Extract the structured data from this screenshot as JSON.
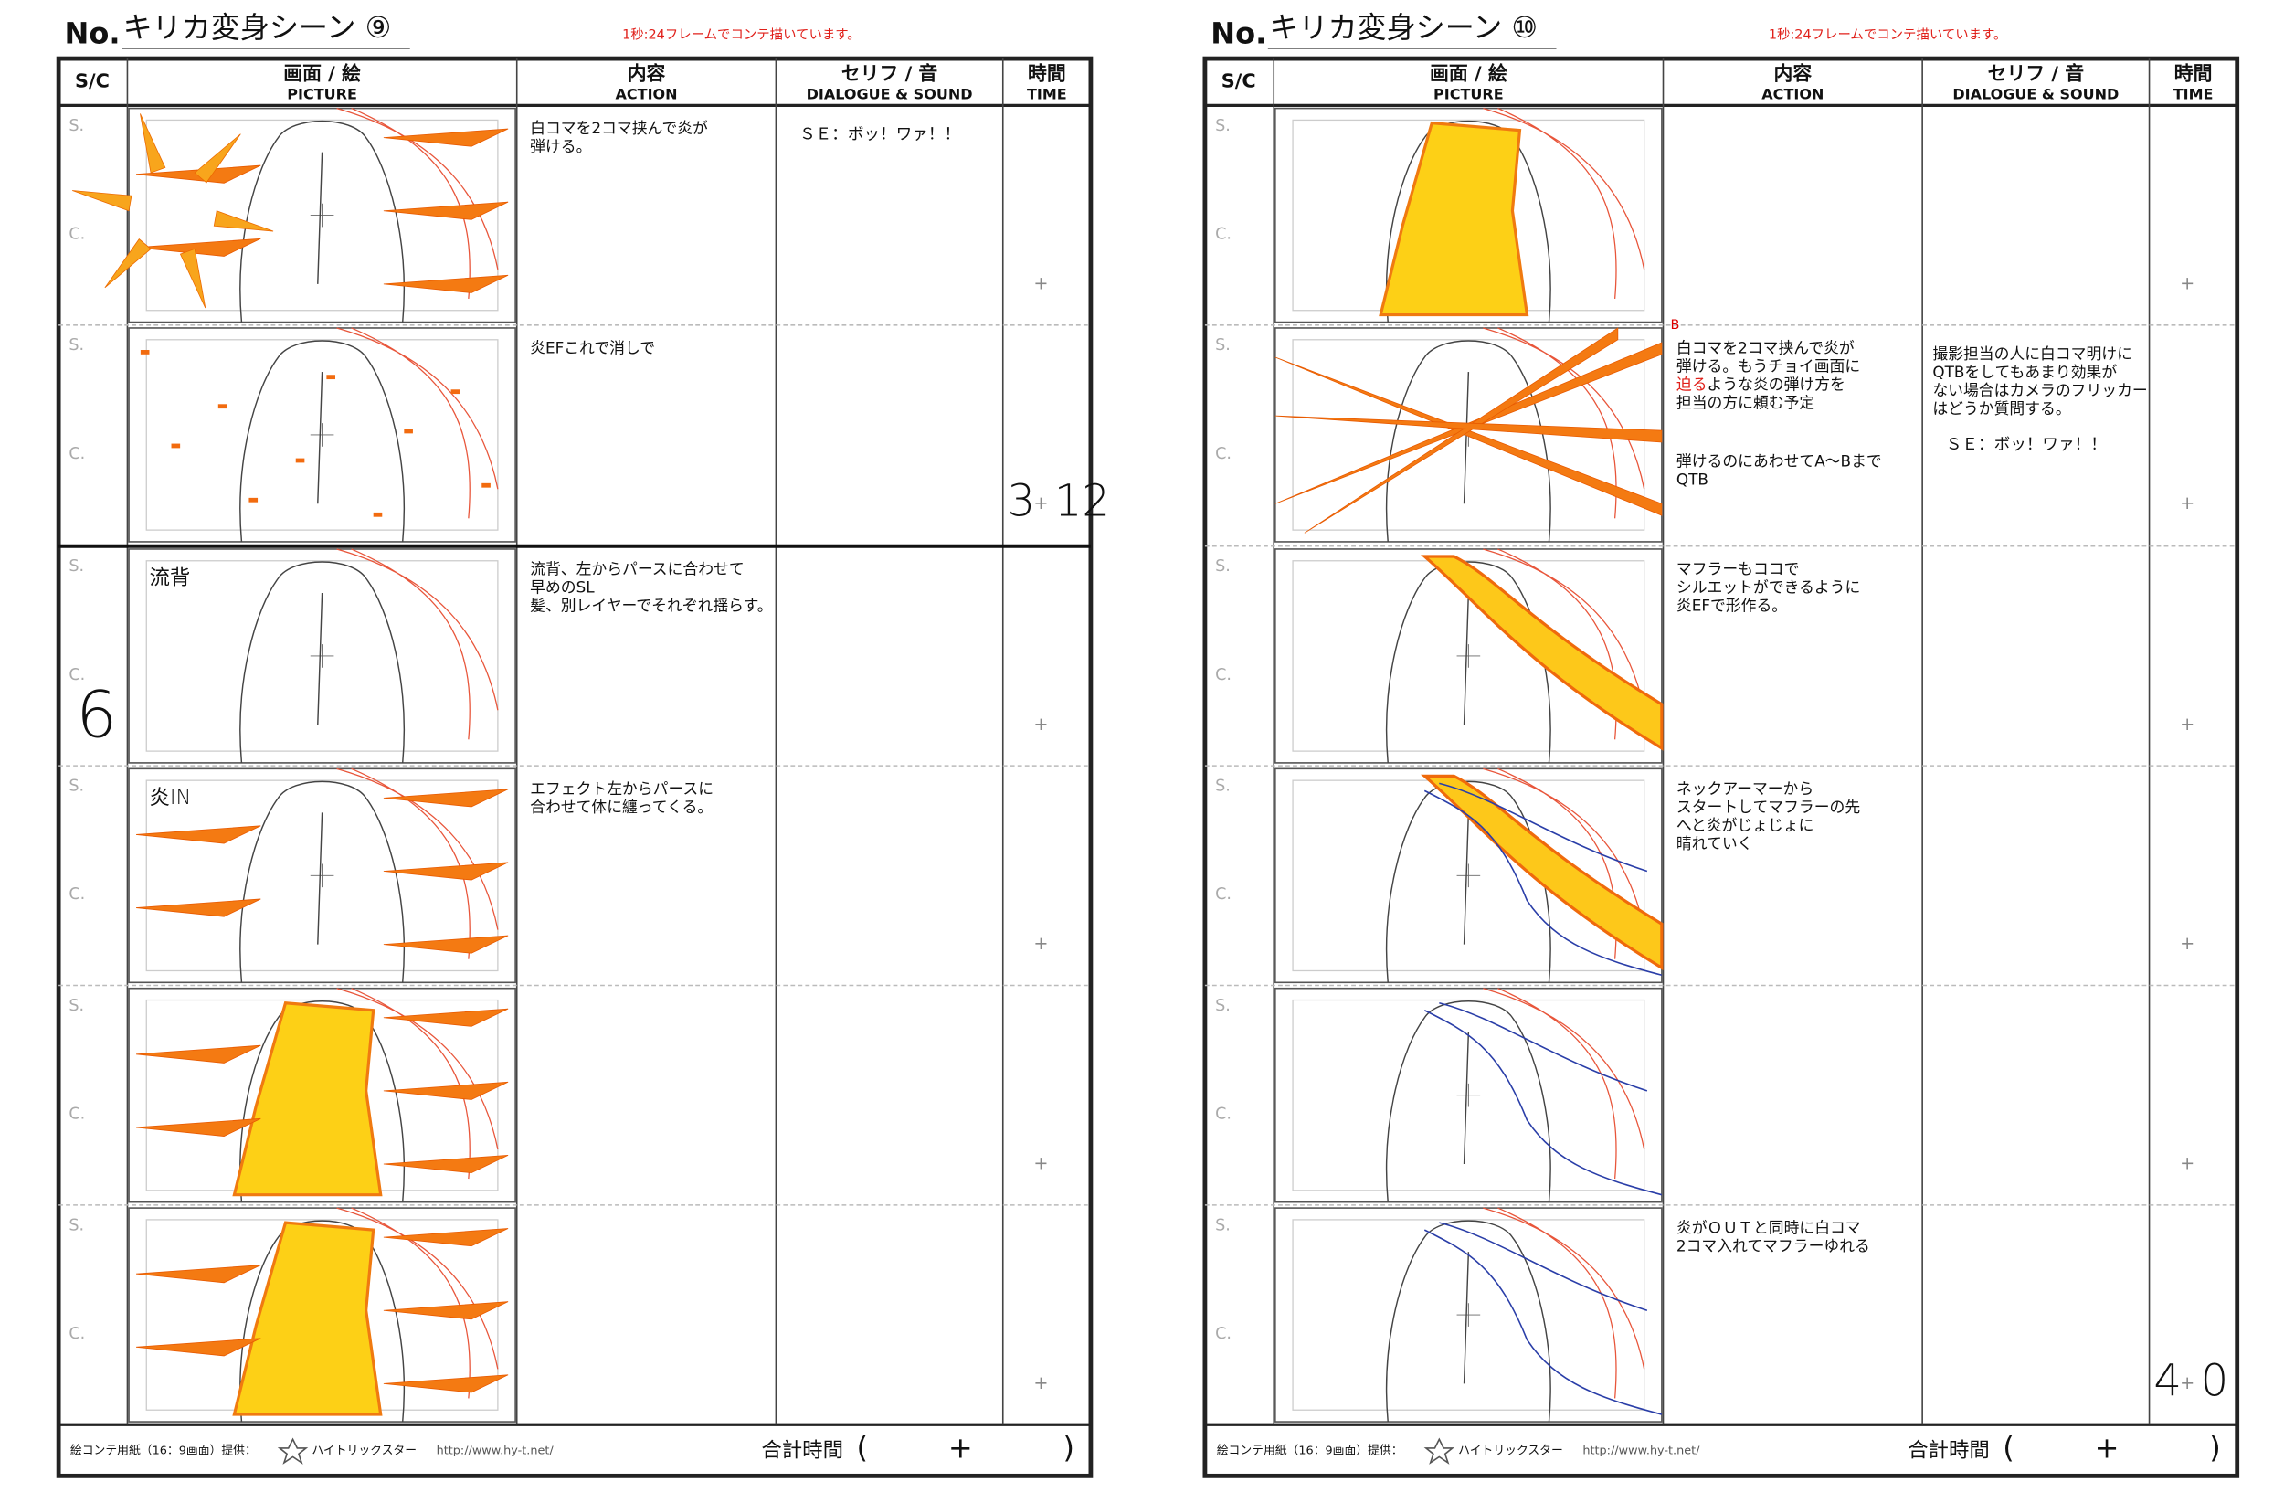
{
  "pages": [
    {
      "no": "No.",
      "title": "キリカ変身シーン ⑨",
      "note": "1秒:24フレームでコンテ描いています。",
      "headers": {
        "sc": "S/C",
        "picture_ja": "画面 / 絵",
        "picture_en": "PICTURE",
        "action_ja": "内容",
        "action_en": "ACTION",
        "dialogue_ja": "セリフ / 音",
        "dialogue_en": "DIALOGUE & SOUND",
        "time_ja": "時間",
        "time_en": "TIME"
      },
      "rows": [
        {
          "s": "S.",
          "c": "C.",
          "action": [
            "白コマを2コマ挟んで炎が",
            "弾ける。"
          ],
          "dialogue": [
            "ＳＥ：ボッ！ワァ！！"
          ],
          "time": {
            "mark": "+"
          }
        },
        {
          "s": "S.",
          "c": "C.",
          "action": [
            "炎EFこれで消しで"
          ],
          "dialogue": [],
          "time": {
            "before": "3",
            "mark": "+",
            "after": "12"
          }
        },
        {
          "s": "S.",
          "c": "C.",
          "sc_note": "6",
          "picture_note": "流背",
          "action": [
            "流背、左からパースに合わせて",
            "早めのSL",
            "髪、別レイヤーでそれぞれ揺らす。"
          ],
          "dialogue": [],
          "time": {
            "mark": "+"
          }
        },
        {
          "s": "S.",
          "c": "C.",
          "picture_note": "炎IN",
          "action": [
            "エフェクト左からパースに",
            "合わせて体に纏ってくる。"
          ],
          "dialogue": [],
          "time": {
            "mark": "+"
          }
        },
        {
          "s": "S.",
          "c": "C.",
          "action": [],
          "dialogue": [],
          "time": {
            "mark": "+"
          }
        },
        {
          "s": "S.",
          "c": "C.",
          "action": [],
          "dialogue": [],
          "time": {
            "mark": "+"
          }
        }
      ],
      "footer": {
        "credit": "絵コンテ用紙（16：9画面）提供：",
        "brand": "ハイトリックスター",
        "url": "http://www.hy-t.net/",
        "total": "合計時間",
        "open": "(",
        "plus": "+",
        "close": ")"
      }
    },
    {
      "no": "No.",
      "title": "キリカ変身シーン ⑩",
      "note": "1秒:24フレームでコンテ描いています。",
      "headers": {
        "sc": "S/C",
        "picture_ja": "画面 / 絵",
        "picture_en": "PICTURE",
        "action_ja": "内容",
        "action_en": "ACTION",
        "dialogue_ja": "セリフ / 音",
        "dialogue_en": "DIALOGUE & SOUND",
        "time_ja": "時間",
        "time_en": "TIME"
      },
      "rows": [
        {
          "s": "S.",
          "c": "C.",
          "action": [],
          "dialogue": [],
          "time": {
            "mark": "+"
          }
        },
        {
          "s": "S.",
          "c": "C.",
          "picture_note": "B",
          "action": [
            "白コマを2コマ挟んで炎が",
            "弾ける。もうチョイ画面に",
            [
              {
                "text": "迫る",
                "color": "#e0201a"
              },
              {
                "text": "ような炎の弾け方を"
              }
            ],
            "担当の方に頼む予定",
            "弾けるのにあわせてA～Bまで",
            "QTB"
          ],
          "dialogue": [
            "撮影担当の人に白コマ明けに",
            "QTBをしてもあまり効果が",
            "ない場合はカメラのフリッカー",
            "はどうか質問する。",
            "ＳＥ：ボッ！ワァ！！"
          ],
          "time": {
            "mark": "+"
          }
        },
        {
          "s": "S.",
          "c": "C.",
          "action": [
            "マフラーもココで",
            "シルエットができるように",
            "炎EFで形作る。"
          ],
          "dialogue": [],
          "time": {
            "mark": "+"
          }
        },
        {
          "s": "S.",
          "c": "C.",
          "action": [
            "ネックアーマーから",
            "スタートしてマフラーの先",
            "へと炎がじょじょに",
            "晴れていく"
          ],
          "dialogue": [],
          "time": {
            "mark": "+"
          }
        },
        {
          "s": "S.",
          "c": "C.",
          "action": [],
          "dialogue": [],
          "time": {
            "mark": "+"
          }
        },
        {
          "s": "S.",
          "c": "C.",
          "action": [
            "炎がＯＵＴと同時に白コマ",
            "2コマ入れてマフラーゆれる"
          ],
          "dialogue": [],
          "time": {
            "before": "4",
            "mark": "+",
            "after": "0"
          }
        }
      ],
      "footer": {
        "credit": "絵コンテ用紙（16：9画面）提供：",
        "brand": "ハイトリックスター",
        "url": "http://www.hy-t.net/",
        "total": "合計時間",
        "open": "(",
        "plus": "+",
        "close": ")"
      }
    }
  ]
}
